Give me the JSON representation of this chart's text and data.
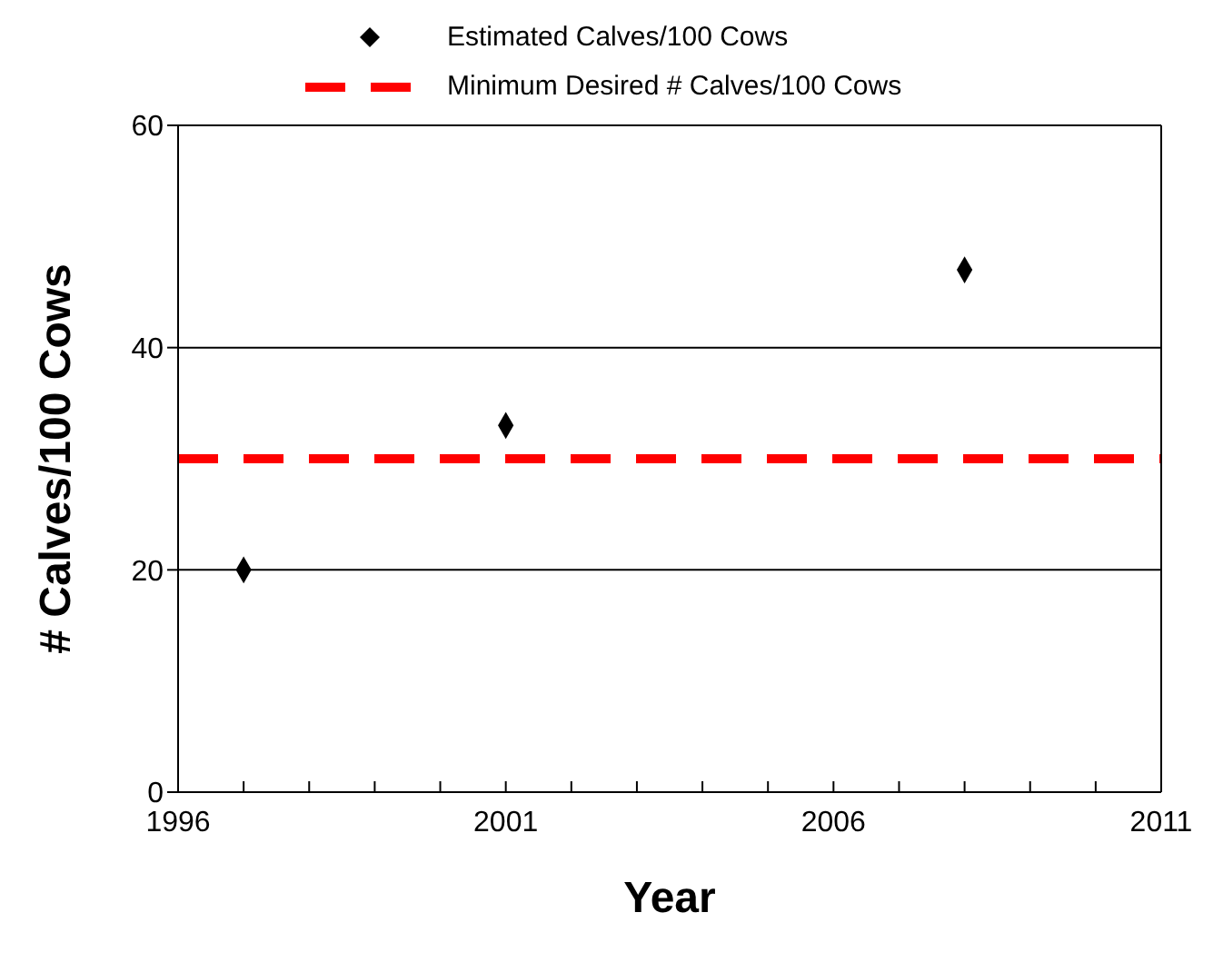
{
  "chart_data": {
    "type": "scatter",
    "xlabel": "Year",
    "ylabel": "# Calves/100 Cows",
    "x": [
      1997,
      2001,
      2008
    ],
    "series": [
      {
        "name": "Estimated Calves/100 Cows",
        "color": "#000000",
        "values": [
          20,
          33,
          47
        ]
      }
    ],
    "marker": "diamond",
    "ref_lines": [
      {
        "axis": "y",
        "value": 30,
        "label": "Minimum Desired # Calves/100 Cows",
        "color": "#ff0000",
        "line_style": "dashed"
      }
    ],
    "xlim": [
      1996,
      2011
    ],
    "xticks": [
      1996,
      {
        "value": 1997,
        "label": null
      },
      {
        "value": 1998,
        "label": null
      },
      {
        "value": 1999,
        "label": null
      },
      {
        "value": 2000,
        "label": null
      },
      2001,
      {
        "value": 2002,
        "label": null
      },
      {
        "value": 2003,
        "label": null
      },
      {
        "value": 2004,
        "label": null
      },
      {
        "value": 2005,
        "label": null
      },
      2006,
      {
        "value": 2007,
        "label": null
      },
      {
        "value": 2008,
        "label": null
      },
      {
        "value": 2009,
        "label": null
      },
      {
        "value": 2010,
        "label": null
      },
      2011
    ],
    "ylim": [
      0,
      60
    ],
    "yticks": [
      0,
      20,
      40,
      60
    ],
    "grid": "y",
    "legend": "top"
  }
}
